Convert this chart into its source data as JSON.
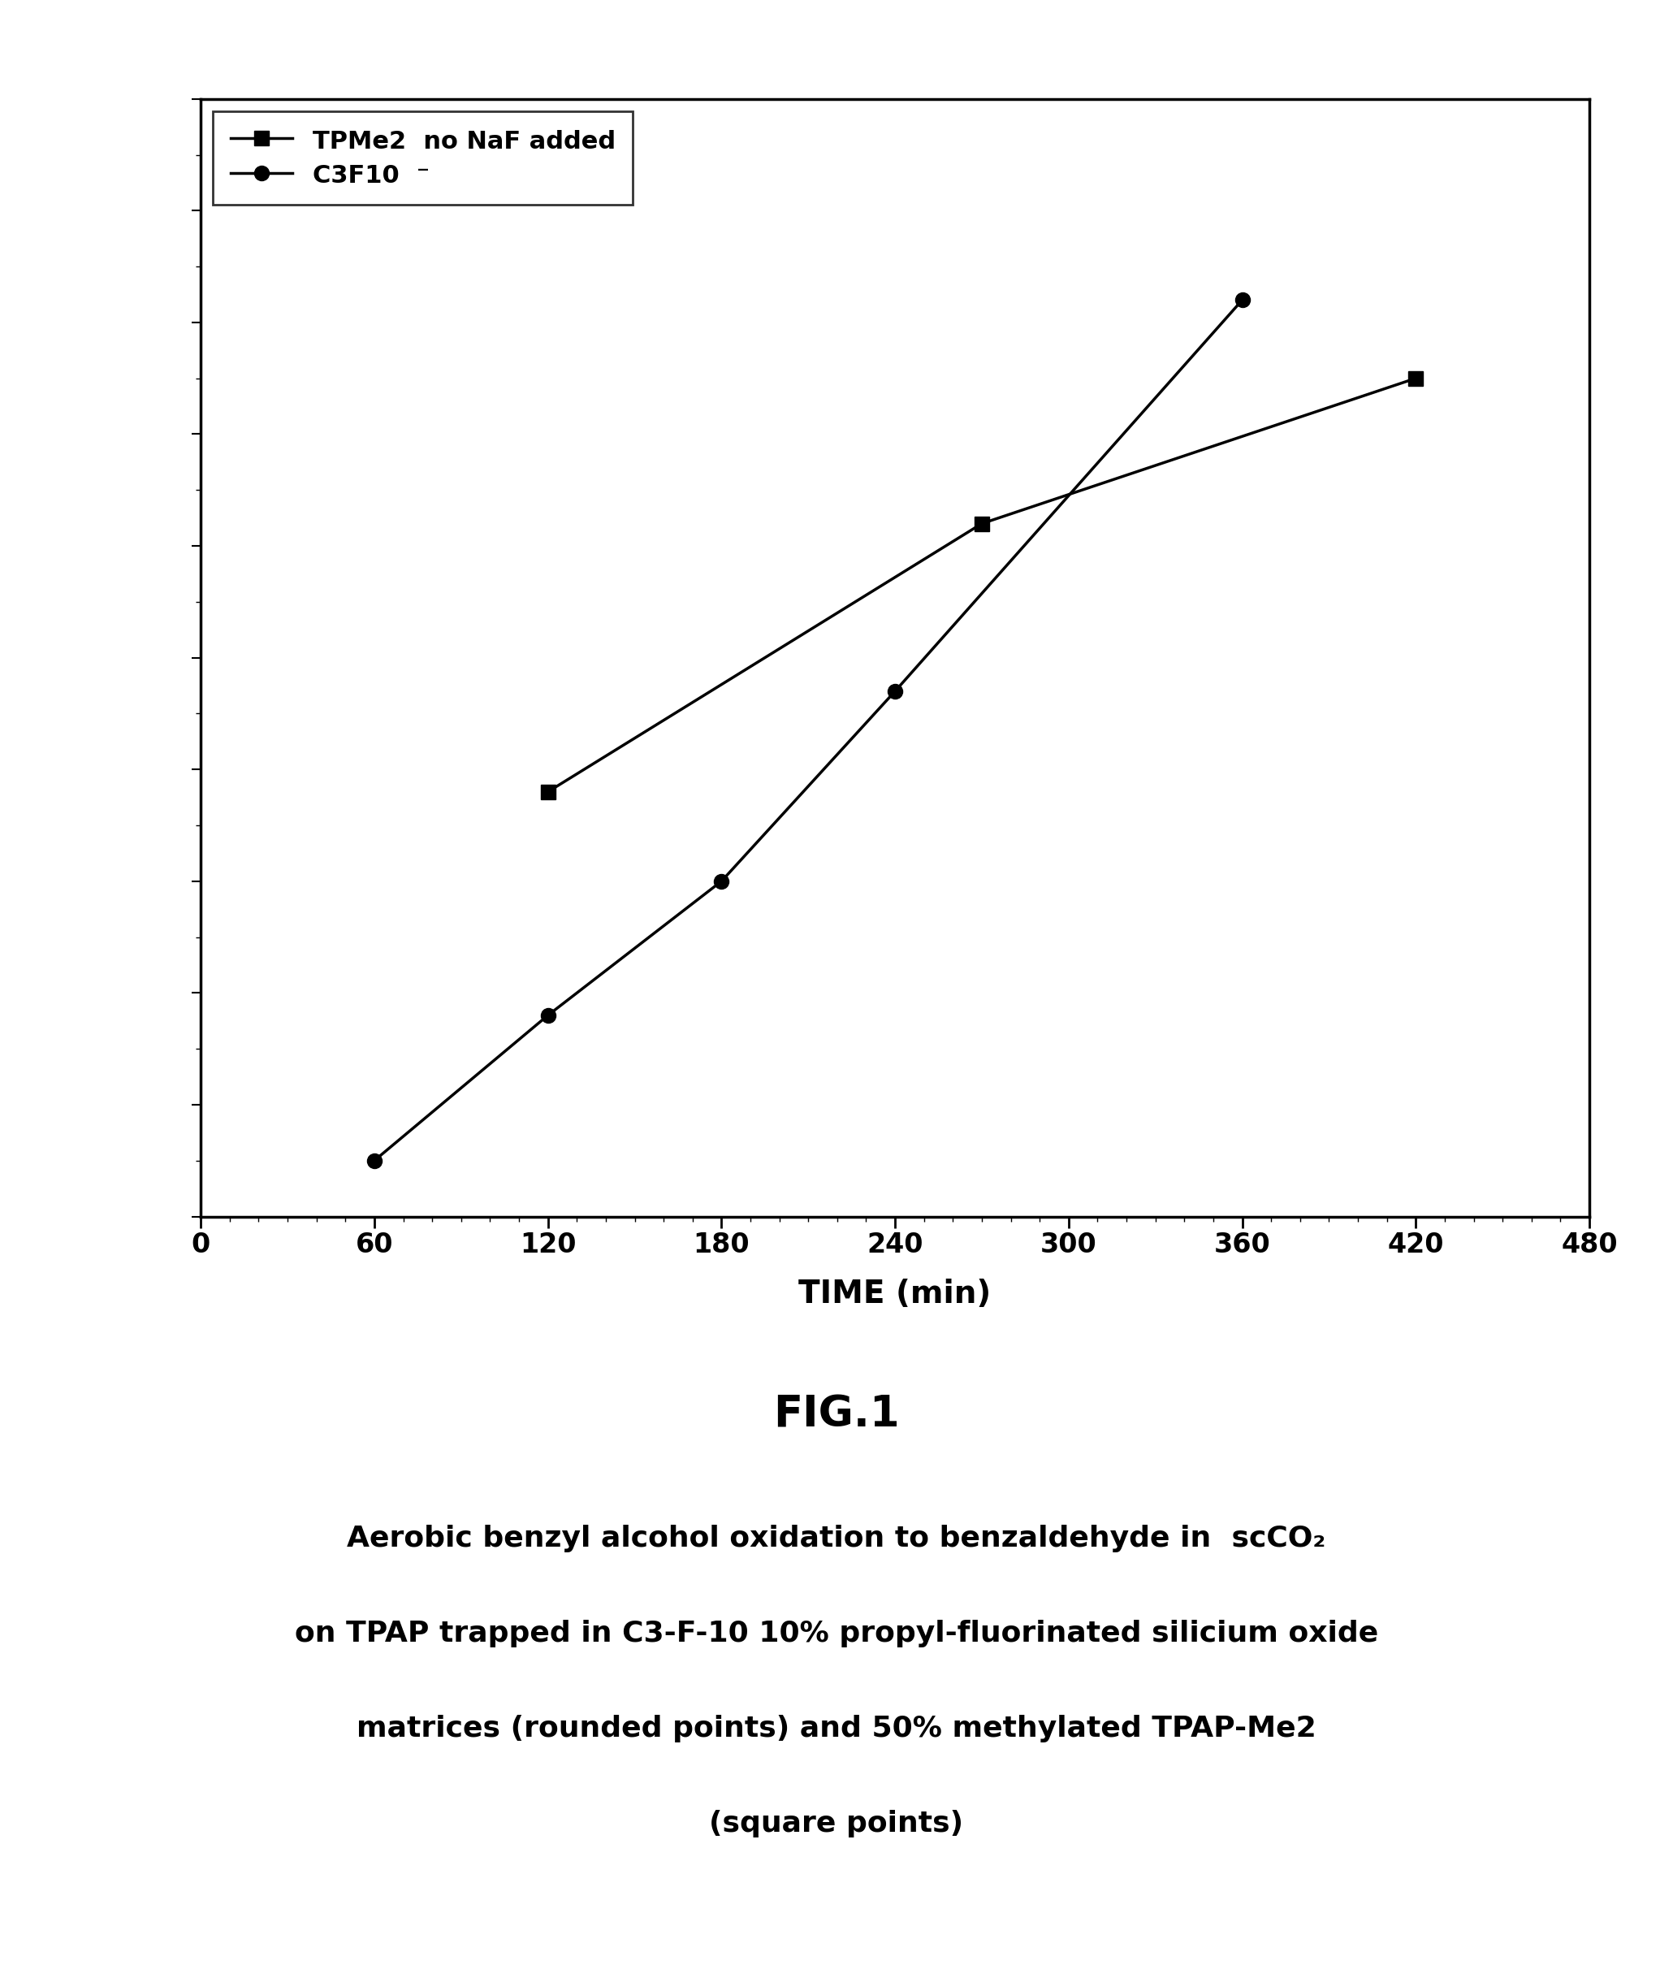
{
  "title": "FIG.1",
  "xlabel": "TIME (min)",
  "caption_line1": "Aerobic benzyl alcohol oxidation to benzaldehyde in  scCO₂",
  "caption_line2": "on TPAP trapped in C3-F-10 10% propyl-fluorinated silicium oxide",
  "caption_line3": "matrices (rounded points) and 50% methylated TPAP-Me2",
  "caption_line4": "(square points)",
  "series1_label": "TPMe2  no NaF added",
  "series2_label": "C3F10  ⁻",
  "series1_x": [
    120,
    270,
    420
  ],
  "series1_y": [
    0.38,
    0.62,
    0.75
  ],
  "series2_x": [
    60,
    120,
    180,
    240,
    360
  ],
  "series2_y": [
    0.05,
    0.18,
    0.3,
    0.47,
    0.82
  ],
  "xlim": [
    0,
    480
  ],
  "ylim": [
    0,
    1.0
  ],
  "xticks": [
    0,
    60,
    120,
    180,
    240,
    300,
    360,
    420,
    480
  ],
  "line_color": "#000000",
  "bg_color": "#ffffff",
  "marker_size_square": 13,
  "marker_size_circle": 13,
  "linewidth": 2.5,
  "title_fontsize": 38,
  "caption_fontsize": 26,
  "xlabel_fontsize": 28,
  "tick_fontsize": 24,
  "legend_fontsize": 22
}
